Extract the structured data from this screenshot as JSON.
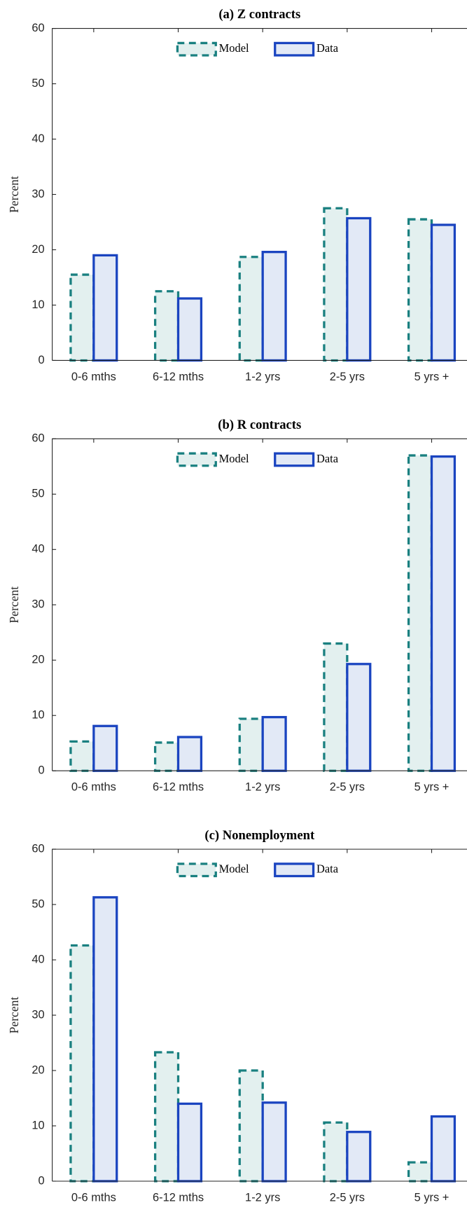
{
  "chart_data": [
    {
      "type": "bar",
      "title": "(a) Z contracts",
      "ylabel": "Percent",
      "categories": [
        "0-6 mths",
        "6-12 mths",
        "1-2 yrs",
        "2-5 yrs",
        "5 yrs +"
      ],
      "series": [
        {
          "name": "Model",
          "color": "#1a8080",
          "values": [
            15.5,
            12.5,
            18.7,
            27.5,
            25.5
          ]
        },
        {
          "name": "Data",
          "color": "#1a44c0",
          "values": [
            19.0,
            11.2,
            19.6,
            25.7,
            24.5
          ]
        }
      ],
      "ylim": [
        0,
        60
      ],
      "yticks": [
        0,
        10,
        20,
        30,
        40,
        50,
        60
      ],
      "legend": "top"
    },
    {
      "type": "bar",
      "title": "(b) R contracts",
      "ylabel": "Percent",
      "categories": [
        "0-6 mths",
        "6-12 mths",
        "1-2 yrs",
        "2-5 yrs",
        "5 yrs +"
      ],
      "series": [
        {
          "name": "Model",
          "color": "#1a8080",
          "values": [
            5.3,
            5.1,
            9.4,
            23.0,
            57.0
          ]
        },
        {
          "name": "Data",
          "color": "#1a44c0",
          "values": [
            8.1,
            6.1,
            9.7,
            19.3,
            56.8
          ]
        }
      ],
      "ylim": [
        0,
        60
      ],
      "yticks": [
        0,
        10,
        20,
        30,
        40,
        50,
        60
      ],
      "legend": "top"
    },
    {
      "type": "bar",
      "title": "(c) Nonemployment",
      "ylabel": "Percent",
      "categories": [
        "0-6 mths",
        "6-12 mths",
        "1-2 yrs",
        "2-5 yrs",
        "5 yrs +"
      ],
      "series": [
        {
          "name": "Model",
          "color": "#1a8080",
          "values": [
            42.6,
            23.3,
            20.0,
            10.6,
            3.4
          ]
        },
        {
          "name": "Data",
          "color": "#1a44c0",
          "values": [
            51.3,
            14.0,
            14.2,
            8.9,
            11.7
          ]
        }
      ],
      "ylim": [
        0,
        60
      ],
      "yticks": [
        0,
        10,
        20,
        30,
        40,
        50,
        60
      ],
      "legend": "top"
    }
  ]
}
